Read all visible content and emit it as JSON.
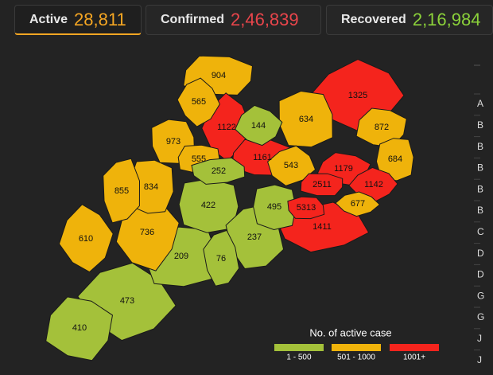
{
  "tabs": [
    {
      "label": "Active",
      "value": "28,811",
      "color": "#f5a623"
    },
    {
      "label": "Confirmed",
      "value": "2,46,839",
      "color": "#e8454b"
    },
    {
      "label": "Recovered",
      "value": "2,16,984",
      "color": "#8bd13a"
    }
  ],
  "districts": [
    {
      "value": 1325,
      "color": "#f4241d"
    },
    {
      "value": 904,
      "color": "#efb30b"
    },
    {
      "value": 634,
      "color": "#efb30b"
    },
    {
      "value": 473,
      "color": "#a4c13a"
    },
    {
      "value": 410,
      "color": "#a4c13a"
    },
    {
      "value": 209,
      "color": "#a4c13a"
    },
    {
      "value": 1411,
      "color": "#f4241d"
    },
    {
      "value": 736,
      "color": "#efb30b"
    },
    {
      "value": 422,
      "color": "#a4c13a"
    },
    {
      "value": 237,
      "color": "#a4c13a"
    },
    {
      "value": 610,
      "color": "#efb30b"
    },
    {
      "value": 834,
      "color": "#efb30b"
    },
    {
      "value": 855,
      "color": "#efb30b"
    },
    {
      "value": 1122,
      "color": "#f4241d"
    },
    {
      "value": 1161,
      "color": "#f4241d"
    },
    {
      "value": 973,
      "color": "#efb30b"
    },
    {
      "value": 565,
      "color": "#efb30b"
    },
    {
      "value": 872,
      "color": "#efb30b"
    },
    {
      "value": 684,
      "color": "#efb30b"
    },
    {
      "value": 543,
      "color": "#efb30b"
    },
    {
      "value": 1179,
      "color": "#f4241d"
    },
    {
      "value": 495,
      "color": "#a4c13a"
    },
    {
      "value": 76,
      "color": "#a4c13a"
    },
    {
      "value": 144,
      "color": "#a4c13a"
    },
    {
      "value": 555,
      "color": "#efb30b"
    },
    {
      "value": 252,
      "color": "#a4c13a"
    },
    {
      "value": 1142,
      "color": "#f4241d"
    },
    {
      "value": 2511,
      "color": "#f4241d"
    },
    {
      "value": 5313,
      "color": "#f4241d"
    },
    {
      "value": 677,
      "color": "#efb30b"
    }
  ],
  "legend": {
    "title": "No. of active case",
    "items": [
      {
        "label": "1 - 500",
        "color": "#a4c13a"
      },
      {
        "label": "501 - 1000",
        "color": "#efb30b"
      },
      {
        "label": "1001+",
        "color": "#f4241d"
      }
    ]
  },
  "side_list": [
    "A",
    "B",
    "B",
    "B",
    "B",
    "B",
    "C",
    "D",
    "D",
    "G",
    "G",
    "J",
    "J"
  ]
}
